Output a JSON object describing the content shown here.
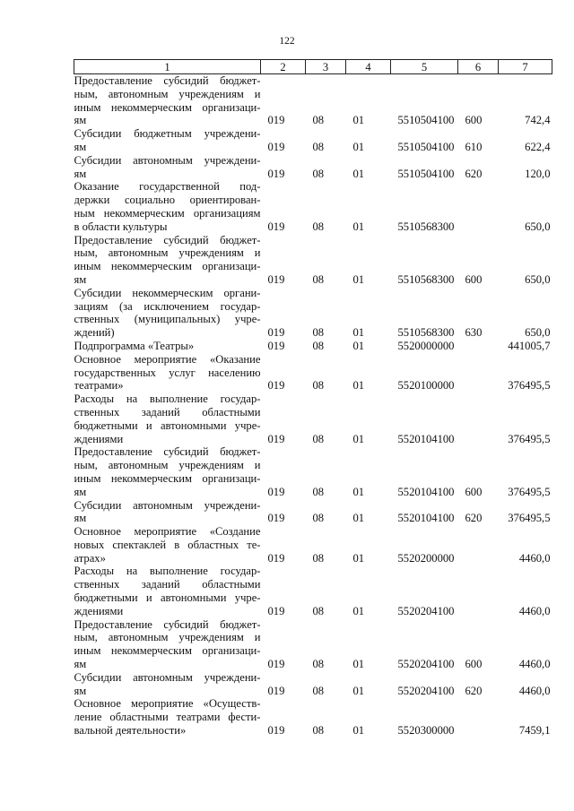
{
  "page_number": "122",
  "headers": [
    "1",
    "2",
    "3",
    "4",
    "5",
    "6",
    "7"
  ],
  "rows": [
    {
      "lines": [
        "Предоставление субсидий бюджет-",
        "ным, автономным учреждениям и",
        "иным некоммерческим организаци-",
        "ям"
      ],
      "c2": "019",
      "c3": "08",
      "c4": "01",
      "c5": "5510504100",
      "c6": "600",
      "c7": "742,4"
    },
    {
      "lines": [
        "Субсидии бюджетным учреждени-",
        "ям"
      ],
      "c2": "019",
      "c3": "08",
      "c4": "01",
      "c5": "5510504100",
      "c6": "610",
      "c7": "622,4"
    },
    {
      "lines": [
        "Субсидии автономным учреждени-",
        "ям"
      ],
      "c2": "019",
      "c3": "08",
      "c4": "01",
      "c5": "5510504100",
      "c6": "620",
      "c7": "120,0"
    },
    {
      "lines": [
        "Оказание государственной под-",
        "держки социально ориентирован-",
        "ным некоммерческим организациям",
        "в области культуры"
      ],
      "c2": "019",
      "c3": "08",
      "c4": "01",
      "c5": "5510568300",
      "c6": "",
      "c7": "650,0"
    },
    {
      "lines": [
        "Предоставление субсидий бюджет-",
        "ным, автономным учреждениям и",
        "иным некоммерческим организаци-",
        "ям"
      ],
      "c2": "019",
      "c3": "08",
      "c4": "01",
      "c5": "5510568300",
      "c6": "600",
      "c7": "650,0"
    },
    {
      "lines": [
        "Субсидии некоммерческим органи-",
        "зациям (за исключением государ-",
        "ственных (муниципальных) учре-",
        "ждений)"
      ],
      "c2": "019",
      "c3": "08",
      "c4": "01",
      "c5": "5510568300",
      "c6": "630",
      "c7": "650,0"
    },
    {
      "lines": [
        "Подпрограмма «Театры»"
      ],
      "c2": "019",
      "c3": "08",
      "c4": "01",
      "c5": "5520000000",
      "c6": "",
      "c7": "441005,7"
    },
    {
      "lines": [
        "Основное мероприятие «Оказание",
        "государственных услуг населению",
        "театрами»"
      ],
      "c2": "019",
      "c3": "08",
      "c4": "01",
      "c5": "5520100000",
      "c6": "",
      "c7": "376495,5"
    },
    {
      "lines": [
        "Расходы на выполнение государ-",
        "ственных заданий областными",
        "бюджетными и автономными учре-",
        "ждениями"
      ],
      "c2": "019",
      "c3": "08",
      "c4": "01",
      "c5": "5520104100",
      "c6": "",
      "c7": "376495,5"
    },
    {
      "lines": [
        "Предоставление субсидий бюджет-",
        "ным, автономным учреждениям и",
        "иным некоммерческим организаци-",
        "ям"
      ],
      "c2": "019",
      "c3": "08",
      "c4": "01",
      "c5": "5520104100",
      "c6": "600",
      "c7": "376495,5"
    },
    {
      "lines": [
        "Субсидии автономным учреждени-",
        "ям"
      ],
      "c2": "019",
      "c3": "08",
      "c4": "01",
      "c5": "5520104100",
      "c6": "620",
      "c7": "376495,5"
    },
    {
      "lines": [
        "Основное мероприятие «Создание",
        "новых спектаклей в областных те-",
        "атрах»"
      ],
      "c2": "019",
      "c3": "08",
      "c4": "01",
      "c5": "5520200000",
      "c6": "",
      "c7": "4460,0"
    },
    {
      "lines": [
        "Расходы на выполнение государ-",
        "ственных заданий областными",
        "бюджетными и автономными учре-",
        "ждениями"
      ],
      "c2": "019",
      "c3": "08",
      "c4": "01",
      "c5": "5520204100",
      "c6": "",
      "c7": "4460,0"
    },
    {
      "lines": [
        "Предоставление субсидий бюджет-",
        "ным, автономным учреждениям и",
        "иным некоммерческим организаци-",
        "ям"
      ],
      "c2": "019",
      "c3": "08",
      "c4": "01",
      "c5": "5520204100",
      "c6": "600",
      "c7": "4460,0"
    },
    {
      "lines": [
        "Субсидии автономным учреждени-",
        "ям"
      ],
      "c2": "019",
      "c3": "08",
      "c4": "01",
      "c5": "5520204100",
      "c6": "620",
      "c7": "4460,0"
    },
    {
      "lines": [
        "Основное мероприятие «Осуществ-",
        "ление областными театрами фести-",
        "вальной деятельности»"
      ],
      "c2": "019",
      "c3": "08",
      "c4": "01",
      "c5": "5520300000",
      "c6": "",
      "c7": "7459,1"
    }
  ]
}
